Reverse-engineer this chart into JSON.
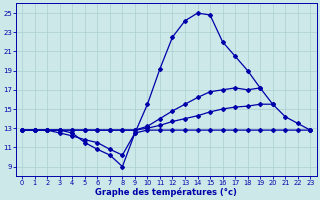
{
  "xlabel": "Graphe des températures (°c)",
  "background_color": "#cce8e8",
  "grid_color": "#aacfcf",
  "line_color": "#0000aa",
  "xlim": [
    -0.5,
    23.5
  ],
  "ylim": [
    8.0,
    26.0
  ],
  "yticks": [
    9,
    11,
    13,
    15,
    17,
    19,
    21,
    23,
    25
  ],
  "xticks": [
    0,
    1,
    2,
    3,
    4,
    5,
    6,
    7,
    8,
    9,
    10,
    11,
    12,
    13,
    14,
    15,
    16,
    17,
    18,
    19,
    20,
    21,
    22,
    23
  ],
  "s1x": [
    0,
    1,
    2,
    3,
    4,
    5,
    6,
    7,
    8,
    9,
    10,
    11,
    12,
    13,
    14,
    15,
    16,
    17,
    18,
    19,
    20,
    21,
    22,
    23
  ],
  "s1y": [
    12.8,
    12.8,
    12.8,
    12.8,
    12.5,
    11.5,
    10.8,
    10.2,
    9.0,
    12.5,
    15.5,
    19.2,
    22.5,
    24.2,
    25.0,
    24.8,
    22.0,
    20.5,
    19.0,
    17.2,
    15.5,
    null,
    null,
    null
  ],
  "s2x": [
    0,
    1,
    2,
    3,
    4,
    5,
    6,
    7,
    8,
    9,
    10,
    11,
    12,
    13,
    14,
    15,
    16,
    17,
    18,
    19,
    20,
    21,
    22,
    23
  ],
  "s2y": [
    12.8,
    12.8,
    12.8,
    12.5,
    12.2,
    11.8,
    11.5,
    10.8,
    10.2,
    12.5,
    12.8,
    12.8,
    12.8,
    12.8,
    12.8,
    12.8,
    12.8,
    12.8,
    12.8,
    12.8,
    12.8,
    12.8,
    12.8,
    12.8
  ],
  "s3x": [
    0,
    1,
    2,
    3,
    4,
    5,
    6,
    7,
    8,
    9,
    10,
    11,
    12,
    13,
    14,
    15,
    16,
    17,
    18,
    19,
    20,
    21,
    22,
    23
  ],
  "s3y": [
    12.8,
    12.8,
    12.8,
    12.8,
    12.8,
    12.8,
    12.8,
    12.8,
    12.8,
    12.8,
    13.0,
    13.3,
    13.7,
    14.0,
    14.3,
    14.7,
    15.0,
    15.2,
    15.3,
    15.5,
    15.5,
    14.2,
    13.5,
    12.8
  ],
  "s4x": [
    0,
    1,
    2,
    3,
    4,
    5,
    6,
    7,
    8,
    9,
    10,
    11,
    12,
    13,
    14,
    15,
    16,
    17,
    18,
    19,
    20,
    21,
    22,
    23
  ],
  "s4y": [
    12.8,
    12.8,
    12.8,
    12.8,
    12.8,
    12.8,
    12.8,
    12.8,
    12.8,
    12.8,
    13.2,
    14.0,
    14.8,
    15.5,
    16.2,
    16.8,
    17.0,
    17.2,
    17.0,
    17.2,
    null,
    null,
    null,
    12.8
  ]
}
